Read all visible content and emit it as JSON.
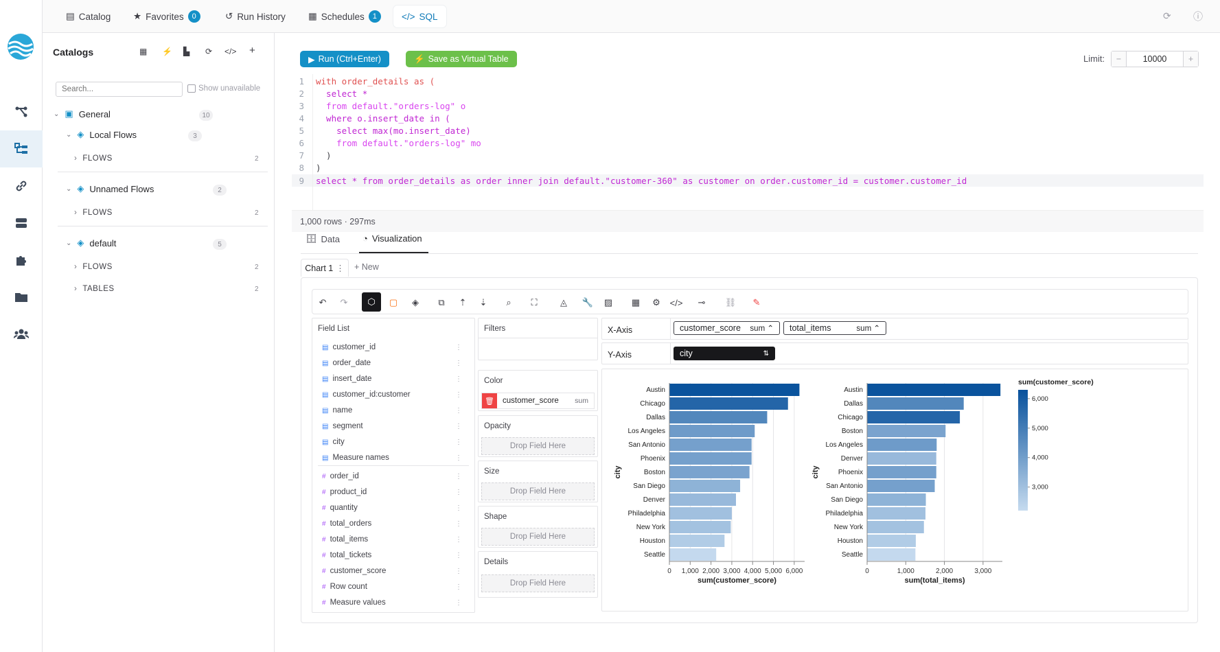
{
  "topbar": {
    "tabs": [
      {
        "label": "Catalog",
        "icon": "catalog-icon"
      },
      {
        "label": "Favorites",
        "icon": "star-icon",
        "badge": "0"
      },
      {
        "label": "Run History",
        "icon": "history-icon"
      },
      {
        "label": "Schedules",
        "icon": "calendar-icon",
        "badge": "1"
      },
      {
        "label": "SQL",
        "icon": "code-icon",
        "active": true
      }
    ]
  },
  "rail": {
    "items": [
      "flows-icon",
      "catalog-tree-icon",
      "connections-icon",
      "storage-icon",
      "plugins-icon",
      "folder-icon",
      "users-icon"
    ]
  },
  "sidebar": {
    "title": "Catalogs",
    "search_placeholder": "Search...",
    "show_unavailable": "Show unavailable",
    "root": {
      "label": "General",
      "count": "10"
    },
    "groups": [
      {
        "label": "Local Flows",
        "count": "3",
        "children": [
          {
            "label": "FLOWS",
            "count": "2"
          }
        ]
      },
      {
        "label": "Unnamed Flows",
        "count": "2",
        "children": [
          {
            "label": "FLOWS",
            "count": "2"
          }
        ]
      },
      {
        "label": "default",
        "count": "5",
        "children": [
          {
            "label": "FLOWS",
            "count": "2"
          },
          {
            "label": "TABLES",
            "count": "2"
          }
        ]
      }
    ]
  },
  "editor": {
    "run_label": "Run (Ctrl+Enter)",
    "save_label": "Save as Virtual Table",
    "limit_label": "Limit:",
    "limit_value": "10000",
    "line_numbers": [
      "1",
      "2",
      "3",
      "4",
      "5",
      "6",
      "7",
      "8",
      "9"
    ],
    "lines": [
      "with order_details as (",
      "  select *",
      "  from default.\"orders-log\" o",
      "  where o.insert_date in (",
      "    select max(mo.insert_date)",
      "    from default.\"orders-log\" mo",
      "  )",
      ")",
      "select * from order_details as order inner join default.\"customer-360\" as customer on order.customer_id = customer.customer_id"
    ]
  },
  "result": {
    "status": "1,000 rows · 297ms",
    "tabs": [
      "Data",
      "Visualization"
    ],
    "chart_tab": "Chart 1",
    "new_tab": "+ New"
  },
  "fields": {
    "title": "Field List",
    "dimensions": [
      "customer_id",
      "order_date",
      "insert_date",
      "customer_id:customer",
      "name",
      "segment",
      "city",
      "Measure names"
    ],
    "measures": [
      "order_id",
      "product_id",
      "quantity",
      "total_orders",
      "total_items",
      "total_tickets",
      "customer_score",
      "Row count",
      "Measure values"
    ]
  },
  "encodings": {
    "filters": "Filters",
    "color": "Color",
    "color_field": "customer_score",
    "color_agg": "sum",
    "opacity": "Opacity",
    "size": "Size",
    "shape": "Shape",
    "details": "Details",
    "drop": "Drop Field Here"
  },
  "axes": {
    "x_label": "X-Axis",
    "y_label": "Y-Axis",
    "x_fields": [
      {
        "name": "customer_score",
        "agg": "sum"
      },
      {
        "name": "total_items",
        "agg": "sum"
      }
    ],
    "y_field": "city"
  },
  "chart_data": [
    {
      "type": "bar",
      "orientation": "horizontal",
      "categories": [
        "Austin",
        "Chicago",
        "Dallas",
        "Los Angeles",
        "San Antonio",
        "Phoenix",
        "Boston",
        "San Diego",
        "Denver",
        "Philadelphia",
        "New York",
        "Houston",
        "Seattle"
      ],
      "values": [
        6250,
        5700,
        4700,
        4100,
        3950,
        3950,
        3850,
        3400,
        3200,
        3000,
        2950,
        2650,
        2250
      ],
      "color_values": [
        6250,
        5700,
        4700,
        4100,
        3950,
        3950,
        3850,
        3400,
        3200,
        3000,
        2950,
        2650,
        2250
      ],
      "xlabel": "sum(customer_score)",
      "ylabel": "city",
      "xlim": [
        0,
        6500
      ],
      "xticks": [
        "0",
        "1,000",
        "2,000",
        "3,000",
        "4,000",
        "5,000",
        "6,000"
      ]
    },
    {
      "type": "bar",
      "orientation": "horizontal",
      "categories": [
        "Austin",
        "Dallas",
        "Chicago",
        "Boston",
        "Los Angeles",
        "Denver",
        "Phoenix",
        "San Antonio",
        "San Diego",
        "Philadelphia",
        "New York",
        "Houston",
        "Seattle"
      ],
      "values": [
        3450,
        2500,
        2400,
        2030,
        1800,
        1790,
        1790,
        1750,
        1520,
        1510,
        1470,
        1260,
        1250
      ],
      "color_values": [
        6250,
        4700,
        5700,
        3850,
        4100,
        3200,
        3950,
        3950,
        3400,
        3000,
        2950,
        2650,
        2250
      ],
      "xlabel": "sum(total_items)",
      "ylabel": "city",
      "xlim": [
        0,
        3500
      ],
      "xticks": [
        "0",
        "1,000",
        "2,000",
        "3,000"
      ]
    }
  ],
  "legend": {
    "title": "sum(customer_score)",
    "ticks": [
      "6,000",
      "5,000",
      "4,000",
      "3,000"
    ],
    "range": [
      2200,
      6300
    ],
    "placement": "right"
  },
  "colors": {
    "accent": "#0f7ab8",
    "run_button": "#1490c7",
    "save_button": "#6cc04a",
    "bar_dark": "#08519c",
    "bar_light": "#c6dbef"
  }
}
